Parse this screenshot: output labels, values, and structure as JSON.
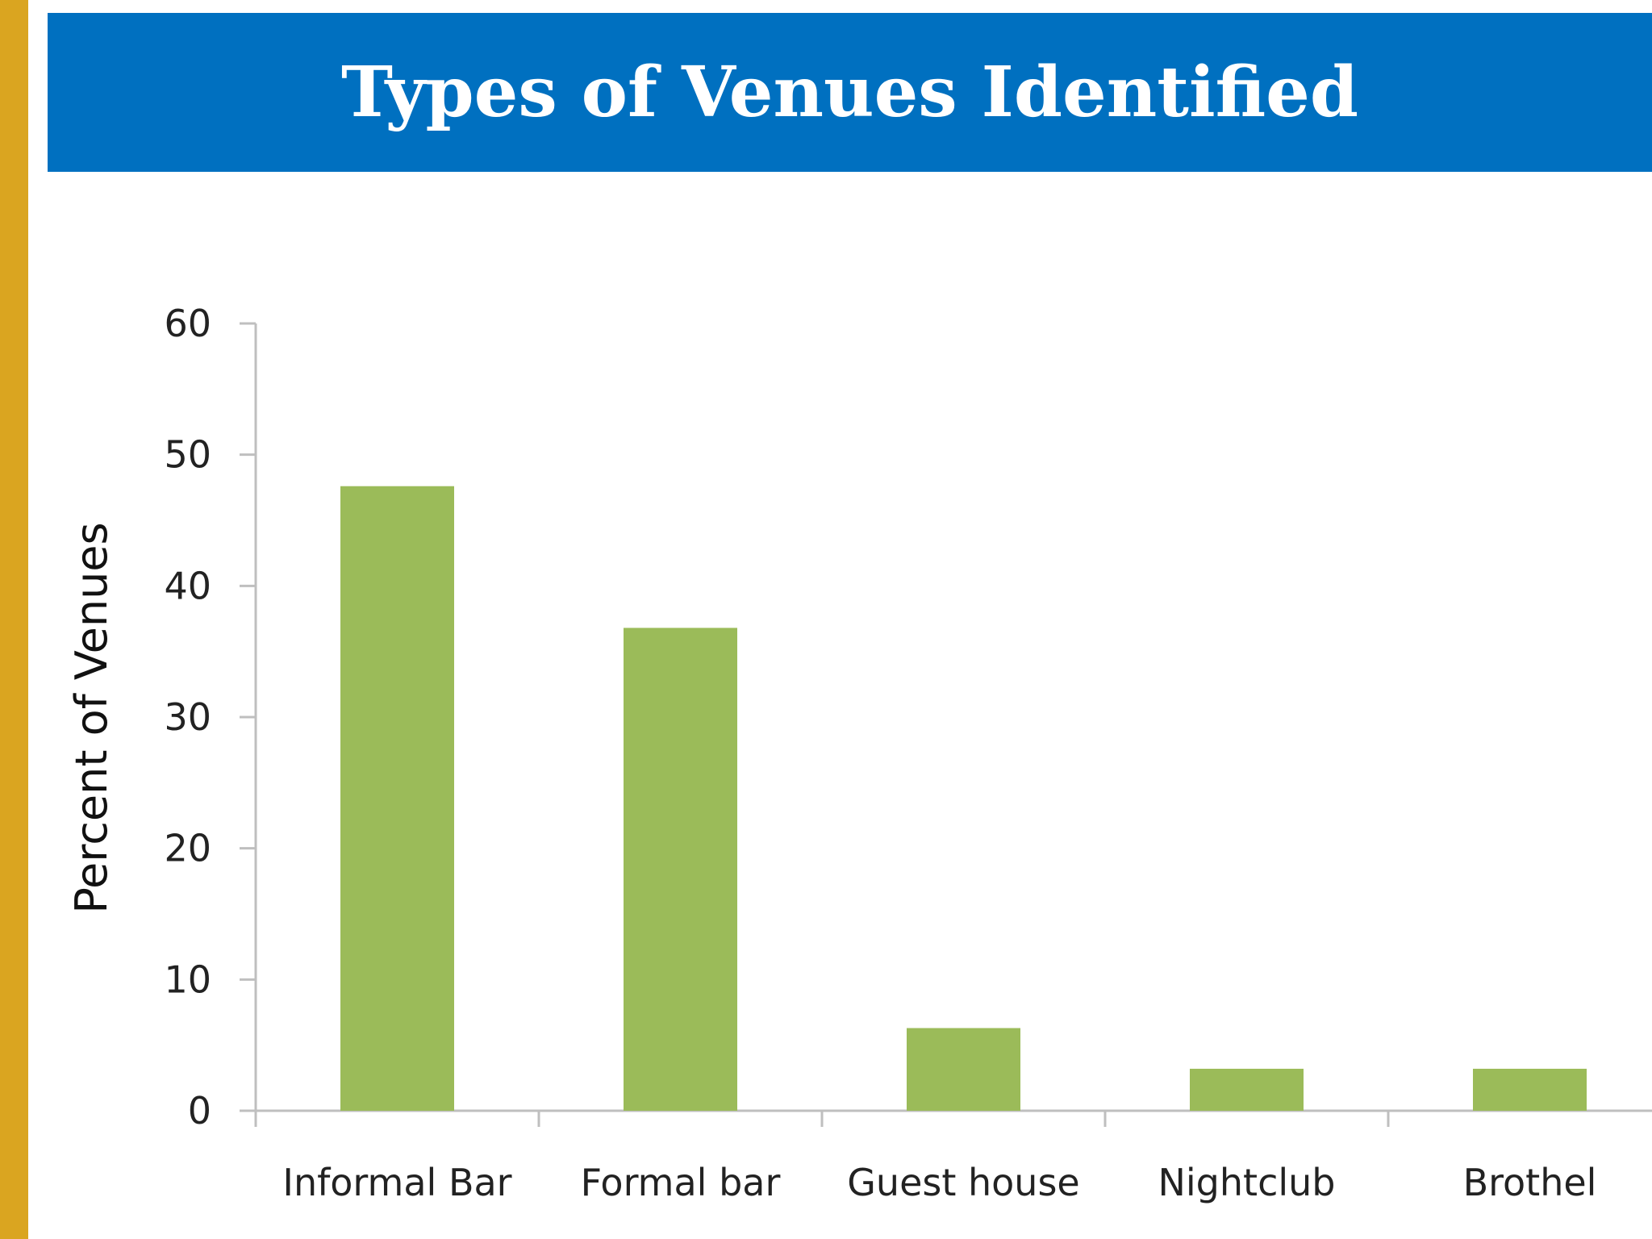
{
  "slide": {
    "title": "Types of Venues Identified"
  },
  "colors": {
    "left_bar": "#DAA520",
    "title_band": "#0070C0",
    "bar": "#9BBB59",
    "axis": "#BFBFBF"
  },
  "chart_data": {
    "type": "bar",
    "title": "Types of Venues Identified",
    "xlabel": "",
    "ylabel": "Percent of Venues",
    "categories": [
      "Informal Bar",
      "Formal bar",
      "Guest house",
      "Nightclub",
      "Brothel"
    ],
    "values": [
      47.6,
      36.8,
      6.3,
      3.2,
      3.2
    ],
    "ylim": [
      0,
      60
    ],
    "yticks": [
      0,
      10,
      20,
      30,
      40,
      50,
      60
    ],
    "grid": false,
    "legend": "none"
  }
}
